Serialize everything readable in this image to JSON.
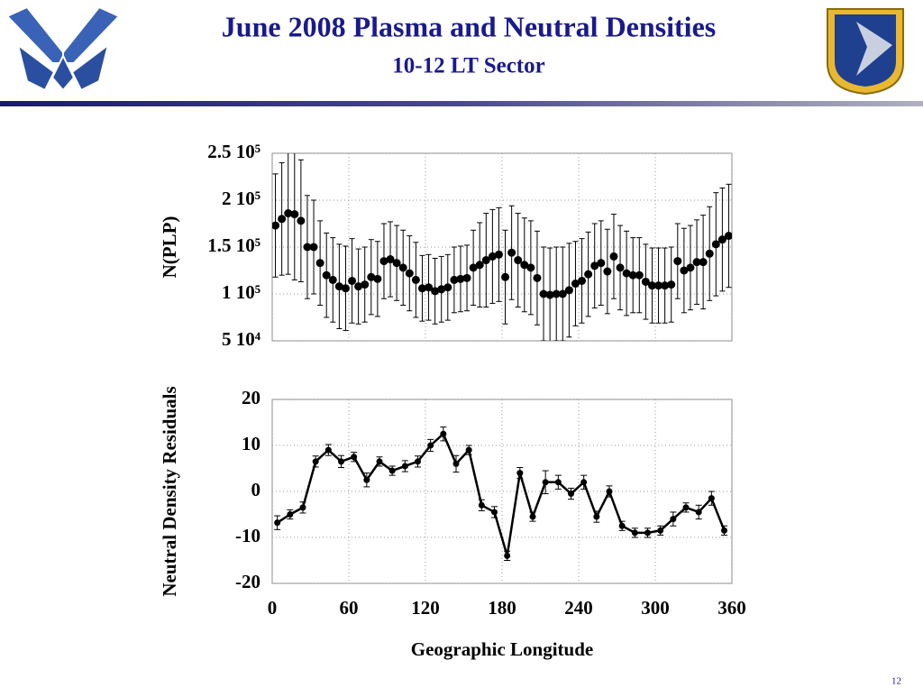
{
  "header": {
    "title": "June 2008 Plasma and Neutral Densities",
    "subtitle": "10-12 LT Sector"
  },
  "page_number": "12",
  "chart_data": [
    {
      "type": "scatter",
      "ylabel": "N(PLP)",
      "color": "#000000",
      "grid": true,
      "show_xtick_labels": false,
      "xlim": [
        0,
        360
      ],
      "xticks": [
        0,
        60,
        120,
        180,
        240,
        300,
        360
      ],
      "ylim": [
        50000,
        250000
      ],
      "yticks": [
        {
          "value": 250000,
          "label": "2.5 10⁵"
        },
        {
          "value": 200000,
          "label": "2 10⁵"
        },
        {
          "value": 150000,
          "label": "1.5 10⁵"
        },
        {
          "value": 100000,
          "label": "1 10⁵"
        },
        {
          "value": 50000,
          "label": "5 10⁴"
        }
      ],
      "x": [
        2.5,
        7.5,
        12.5,
        17.5,
        22.5,
        27.5,
        32.5,
        37.5,
        42.5,
        47.5,
        52.5,
        57.5,
        62.5,
        67.5,
        72.5,
        77.5,
        82.5,
        87.5,
        92.5,
        97.5,
        102.5,
        107.5,
        112.5,
        117.5,
        122.5,
        127.5,
        132.5,
        137.5,
        142.5,
        147.5,
        152.5,
        157.5,
        162.5,
        167.5,
        172.5,
        177.5,
        182.5,
        187.5,
        192.5,
        197.5,
        202.5,
        207.5,
        212.5,
        217.5,
        222.5,
        227.5,
        232.5,
        237.5,
        242.5,
        247.5,
        252.5,
        257.5,
        262.5,
        267.5,
        272.5,
        277.5,
        282.5,
        287.5,
        292.5,
        297.5,
        302.5,
        307.5,
        312.5,
        317.5,
        322.5,
        327.5,
        332.5,
        337.5,
        342.5,
        347.5,
        352.5,
        357.5
      ],
      "values": [
        173000,
        180000,
        186000,
        185000,
        178000,
        150000,
        150000,
        133000,
        120000,
        115000,
        108000,
        106000,
        114000,
        108000,
        110000,
        118000,
        116000,
        135000,
        137000,
        133000,
        128000,
        122000,
        115000,
        106000,
        107000,
        103000,
        105000,
        107000,
        115000,
        116000,
        117000,
        128000,
        131000,
        136000,
        140000,
        142000,
        118000,
        144000,
        136000,
        131000,
        128000,
        117000,
        100000,
        99000,
        100000,
        100000,
        104000,
        111000,
        114000,
        121000,
        130000,
        133000,
        124000,
        140000,
        128000,
        122000,
        120000,
        120000,
        113000,
        109000,
        109000,
        109000,
        110000,
        135000,
        125000,
        128000,
        134000,
        134000,
        143000,
        153000,
        158000,
        162000
      ],
      "errors": [
        55000,
        60000,
        65000,
        70000,
        65000,
        55000,
        50000,
        45000,
        45000,
        45000,
        45000,
        45000,
        45000,
        40000,
        40000,
        40000,
        40000,
        40000,
        40000,
        40000,
        40000,
        40000,
        40000,
        35000,
        35000,
        35000,
        35000,
        35000,
        35000,
        35000,
        35000,
        40000,
        45000,
        50000,
        50000,
        50000,
        50000,
        50000,
        50000,
        50000,
        50000,
        50000,
        50000,
        50000,
        50000,
        50000,
        50000,
        45000,
        45000,
        45000,
        45000,
        45000,
        45000,
        45000,
        45000,
        45000,
        40000,
        40000,
        40000,
        40000,
        40000,
        40000,
        40000,
        40000,
        45000,
        45000,
        45000,
        50000,
        50000,
        55000,
        55000,
        55000
      ]
    },
    {
      "type": "line",
      "ylabel": "Neutral Density Residuals",
      "xlabel": "Geographic Longitude",
      "color": "#000000",
      "grid": true,
      "show_xtick_labels": true,
      "xlim": [
        0,
        360
      ],
      "xticks": [
        0,
        60,
        120,
        180,
        240,
        300,
        360
      ],
      "ylim": [
        -20,
        20
      ],
      "yticks": [
        20,
        10,
        0,
        -10,
        -20
      ],
      "x": [
        4,
        14,
        24,
        34,
        44,
        54,
        64,
        74,
        84,
        94,
        104,
        114,
        124,
        134,
        144,
        154,
        164,
        174,
        184,
        194,
        204,
        214,
        224,
        234,
        244,
        254,
        264,
        274,
        284,
        294,
        304,
        314,
        324,
        334,
        344,
        354
      ],
      "values": [
        -6.8,
        -5,
        -3.5,
        6.5,
        9,
        6.5,
        7.5,
        2.5,
        6.5,
        4.5,
        5.5,
        6.5,
        10,
        12.5,
        6,
        9,
        -3,
        -4.5,
        -14,
        4,
        -5.5,
        2,
        2,
        -0.5,
        2,
        -5.5,
        0,
        -7.5,
        -9,
        -9,
        -8.5,
        -6,
        -3.5,
        -4.5,
        -1.5,
        -8.5
      ],
      "errors": [
        1.5,
        1,
        1.2,
        1.2,
        1.2,
        1.3,
        1,
        1.5,
        1,
        1,
        1.2,
        1.2,
        1.3,
        1.5,
        1.8,
        1,
        1.2,
        1.2,
        1,
        1.2,
        1,
        2.5,
        1.5,
        1.2,
        1.5,
        1.2,
        1.2,
        1,
        1,
        1,
        1,
        1.5,
        1,
        1.5,
        1.5,
        1
      ]
    }
  ]
}
